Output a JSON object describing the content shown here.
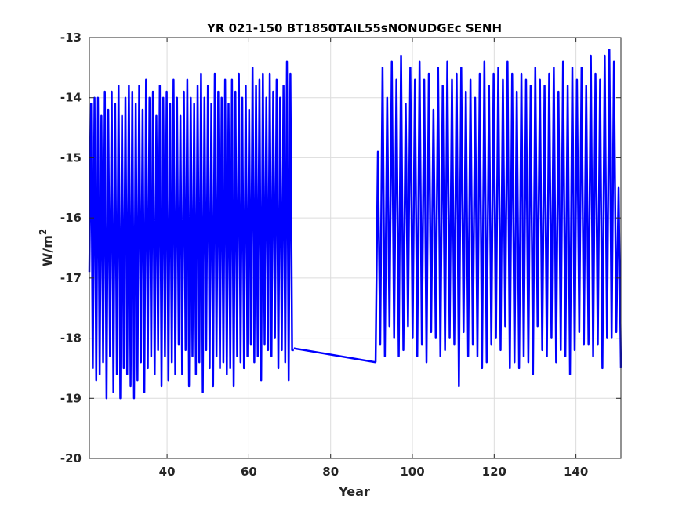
{
  "chart_data": {
    "type": "line",
    "title": "YR 021-150 BT1850TAIL55sNONUDGEc SENH",
    "xlabel": "Year",
    "ylabel_base": "W/m",
    "ylabel_sup": "2",
    "xlim": [
      21,
      151
    ],
    "ylim": [
      -20,
      -13
    ],
    "xticks": [
      40,
      60,
      80,
      100,
      120,
      140
    ],
    "yticks": [
      -13,
      -14,
      -15,
      -16,
      -17,
      -18,
      -19,
      -20
    ],
    "grid": true,
    "line_color": "#0000ff",
    "series": [
      {
        "segments": [
          {
            "x_start": 21,
            "x_end": 71,
            "values": [
              -16.9,
              -14.1,
              -18.5,
              -14.0,
              -18.7,
              -14.0,
              -18.6,
              -14.3,
              -18.4,
              -13.9,
              -19.0,
              -14.2,
              -18.3,
              -13.9,
              -18.9,
              -14.1,
              -18.6,
              -13.8,
              -19.0,
              -14.3,
              -18.5,
              -14.0,
              -18.6,
              -13.8,
              -18.8,
              -13.9,
              -19.0,
              -14.1,
              -18.7,
              -13.8,
              -18.4,
              -14.2,
              -18.9,
              -13.7,
              -18.5,
              -14.0,
              -18.3,
              -13.9,
              -18.6,
              -14.3,
              -18.2,
              -13.8,
              -18.8,
              -14.0,
              -18.3,
              -13.9,
              -18.7,
              -14.1,
              -18.4,
              -13.7,
              -18.6,
              -14.0,
              -18.1,
              -14.3,
              -18.6,
              -13.9,
              -18.2,
              -13.7,
              -18.8,
              -14.0,
              -18.3,
              -14.1,
              -18.6,
              -13.8,
              -18.4,
              -13.6,
              -18.9,
              -14.0,
              -18.2,
              -13.8,
              -18.5,
              -14.1,
              -18.8,
              -13.6,
              -18.3,
              -13.9,
              -18.5,
              -14.0,
              -18.4,
              -13.7,
              -18.6,
              -14.1,
              -18.5,
              -13.7,
              -18.8,
              -13.9,
              -18.3,
              -13.6,
              -18.4,
              -14.0,
              -18.5,
              -13.8,
              -18.3,
              -14.2,
              -18.1,
              -13.5,
              -18.4,
              -13.8,
              -18.3,
              -13.7,
              -18.7,
              -13.6,
              -18.1,
              -14.0,
              -18.2,
              -13.6,
              -18.3,
              -13.9,
              -18.0,
              -13.7,
              -18.5,
              -14.0,
              -18.2,
              -13.8,
              -18.4,
              -13.4,
              -18.7,
              -13.6,
              -18.2,
              -18.2
            ]
          },
          {
            "x_start": 71,
            "x_end": 91,
            "values": [
              -18.17,
              -18.4
            ]
          },
          {
            "x_start": 91,
            "x_end": 151,
            "values": [
              -18.4,
              -14.9,
              -18.1,
              -13.5,
              -18.3,
              -14.0,
              -17.8,
              -13.4,
              -18.0,
              -13.7,
              -18.3,
              -13.3,
              -18.2,
              -14.1,
              -17.8,
              -13.5,
              -18.0,
              -13.7,
              -18.3,
              -13.4,
              -18.1,
              -13.7,
              -18.4,
              -13.6,
              -17.9,
              -14.2,
              -18.0,
              -13.5,
              -18.3,
              -13.8,
              -18.2,
              -13.4,
              -18.0,
              -13.7,
              -18.1,
              -13.6,
              -18.8,
              -13.5,
              -17.9,
              -13.9,
              -18.3,
              -13.7,
              -18.1,
              -14.0,
              -18.3,
              -13.6,
              -18.5,
              -13.4,
              -18.4,
              -13.8,
              -18.1,
              -13.6,
              -18.0,
              -13.5,
              -18.2,
              -13.7,
              -17.8,
              -13.4,
              -18.5,
              -13.6,
              -18.4,
              -13.9,
              -18.5,
              -13.6,
              -18.3,
              -13.7,
              -18.4,
              -13.8,
              -18.6,
              -13.5,
              -17.8,
              -13.7,
              -18.2,
              -13.8,
              -18.3,
              -13.6,
              -18.0,
              -13.5,
              -18.4,
              -13.9,
              -18.2,
              -13.4,
              -18.3,
              -13.8,
              -18.6,
              -13.5,
              -18.2,
              -13.7,
              -17.9,
              -13.5,
              -18.1,
              -13.8,
              -18.1,
              -13.3,
              -18.3,
              -13.6,
              -18.1,
              -13.7,
              -18.5,
              -13.3,
              -18.0,
              -13.2,
              -18.0,
              -13.4,
              -17.9,
              -15.5,
              -18.5
            ]
          }
        ]
      }
    ]
  }
}
